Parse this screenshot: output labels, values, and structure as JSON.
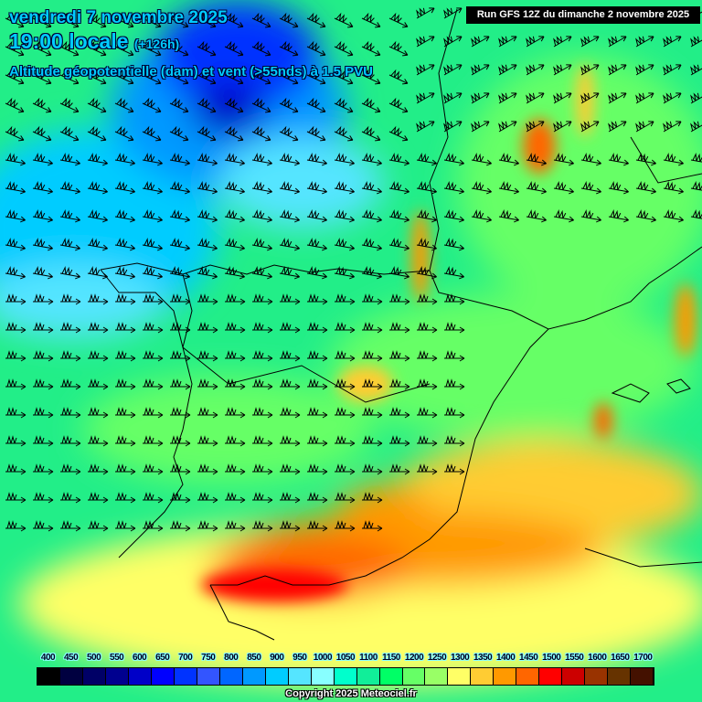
{
  "header": {
    "date": "vendredi 7 novembre 2025",
    "time": "19:00 locale",
    "lead": "(+126h)",
    "parameter": "Altitude géopotentielle (dam) et vent (>55nds) à 1.5 PVU",
    "run": "Run GFS 12Z du dimanche 2 novembre 2025"
  },
  "legend": {
    "labels": [
      "400",
      "450",
      "500",
      "550",
      "600",
      "650",
      "700",
      "750",
      "800",
      "850",
      "900",
      "950",
      "1000",
      "1050",
      "1100",
      "1150",
      "1200",
      "1250",
      "1300",
      "1350",
      "1400",
      "1450",
      "1500",
      "1550",
      "1600",
      "1650",
      "1700"
    ],
    "colors": [
      "#000000",
      "#000040",
      "#000066",
      "#00008f",
      "#0000c8",
      "#0000ff",
      "#0033ff",
      "#3355ff",
      "#0066ff",
      "#0099ff",
      "#00ccff",
      "#55e5ff",
      "#88ffff",
      "#00ffcc",
      "#11ee99",
      "#00ff66",
      "#66ff66",
      "#99ff66",
      "#ffff66",
      "#ffcc33",
      "#ff9900",
      "#ff6600",
      "#ff0000",
      "#cc0000",
      "#993300",
      "#663300",
      "#441100"
    ]
  },
  "copyright": "Copyright 2025 Meteociel.fr"
}
